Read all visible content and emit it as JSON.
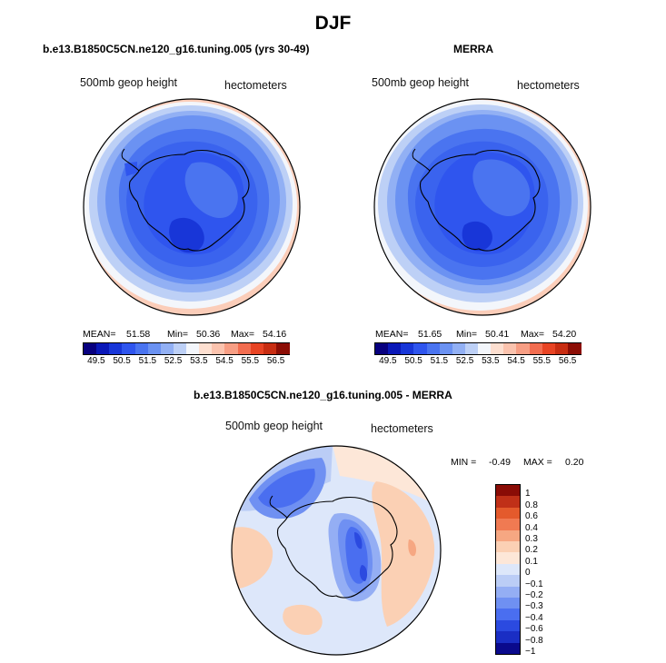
{
  "title": "DJF",
  "panels": [
    {
      "title": "b.e13.B1850C5CN.ne120_g16.tuning.005 (yrs 30-49)",
      "variable_label": "500mb geop height",
      "units_label": "hectometers",
      "mean_label": "MEAN=",
      "mean_value": "51.58",
      "min_label": "Min=",
      "min_value": "50.36",
      "max_label": "Max=",
      "max_value": "54.16"
    },
    {
      "title": "MERRA",
      "variable_label": "500mb geop height",
      "units_label": "hectometers",
      "mean_label": "MEAN=",
      "mean_value": "51.65",
      "min_label": "Min=",
      "min_value": "50.41",
      "max_label": "Max=",
      "max_value": "54.20"
    }
  ],
  "diff_panel": {
    "title": "b.e13.B1850C5CN.ne120_g16.tuning.005 - MERRA",
    "variable_label": "500mb geop height",
    "units_label": "hectometers",
    "min_label": "MIN =",
    "min_value": "-0.49",
    "max_label": "MAX =",
    "max_value": "0.20"
  },
  "colors": {
    "scale_abs": [
      "#08007f",
      "#0a18b8",
      "#1836d8",
      "#2f55ee",
      "#4a74f0",
      "#6b92f2",
      "#92b0f4",
      "#bdd0f6",
      "#f3f6fb",
      "#fddfd0",
      "#fbc3ae",
      "#f79e84",
      "#f26d50",
      "#e84424",
      "#c82d12",
      "#8c0d05"
    ],
    "scale_diff": [
      "#0a0a8c",
      "#1a2ec4",
      "#2b4ae0",
      "#4a6ef0",
      "#6f90f2",
      "#94aef4",
      "#bbcdf6",
      "#dde7fa",
      "#fde7d8",
      "#fbd0b4",
      "#f6a782",
      "#f07a52",
      "#e45a2c",
      "#c03018",
      "#8a0c06"
    ]
  },
  "chart_data": [
    {
      "type": "heatmap",
      "title": "b.e13.B1850C5CN.ne120_g16.tuning.005 (yrs 30-49)",
      "projection": "south polar stereographic",
      "variable": "500mb geop height",
      "units": "hectometers",
      "mean": 51.58,
      "min": 50.36,
      "max": 54.16,
      "colorbar_levels": [
        49.5,
        49.75,
        50.0,
        50.25,
        50.5,
        50.75,
        51.0,
        51.25,
        51.5,
        51.75,
        52.0,
        52.25,
        52.5,
        52.75,
        53.0,
        53.25,
        53.5,
        53.75,
        54.0,
        54.25,
        54.5,
        54.75,
        55.0,
        55.25,
        55.5,
        55.75,
        56.0,
        56.25,
        56.5
      ],
      "colorbar_tick_labels": [
        "49.5",
        "50.5",
        "51.5",
        "52.5",
        "53.5",
        "54.5",
        "55.5",
        "56.5"
      ]
    },
    {
      "type": "heatmap",
      "title": "MERRA",
      "projection": "south polar stereographic",
      "variable": "500mb geop height",
      "units": "hectometers",
      "mean": 51.65,
      "min": 50.41,
      "max": 54.2,
      "colorbar_levels": [
        49.5,
        49.75,
        50.0,
        50.25,
        50.5,
        50.75,
        51.0,
        51.25,
        51.5,
        51.75,
        52.0,
        52.25,
        52.5,
        52.75,
        53.0,
        53.25,
        53.5,
        53.75,
        54.0,
        54.25,
        54.5,
        54.75,
        55.0,
        55.25,
        55.5,
        55.75,
        56.0,
        56.25,
        56.5
      ],
      "colorbar_tick_labels": [
        "49.5",
        "50.5",
        "51.5",
        "52.5",
        "53.5",
        "54.5",
        "55.5",
        "56.5"
      ]
    },
    {
      "type": "heatmap",
      "title": "b.e13.B1850C5CN.ne120_g16.tuning.005 - MERRA",
      "projection": "south polar stereographic",
      "variable": "500mb geop height",
      "units": "hectometers",
      "min": -0.49,
      "max": 0.2,
      "colorbar_levels": [
        -1,
        -0.8,
        -0.6,
        -0.4,
        -0.3,
        -0.2,
        -0.1,
        0,
        0.1,
        0.2,
        0.3,
        0.4,
        0.6,
        0.8,
        1
      ],
      "colorbar_tick_labels": [
        "1",
        "0.8",
        "0.6",
        "0.4",
        "0.3",
        "0.2",
        "0.1",
        "0",
        "−0.1",
        "−0.2",
        "−0.3",
        "−0.4",
        "−0.6",
        "−0.8",
        "−1"
      ]
    }
  ]
}
